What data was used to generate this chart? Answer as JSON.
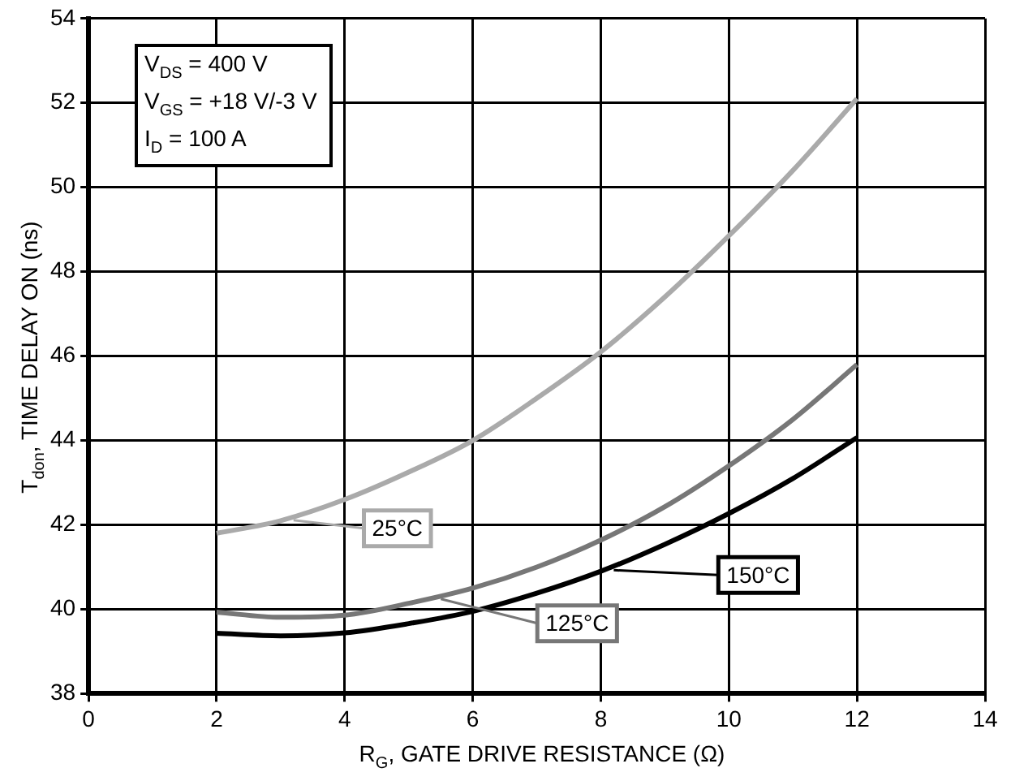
{
  "chart_data": {
    "type": "line",
    "xlabel": "R$_{G}$, GATE DRIVE RESISTANCE (Ω)",
    "ylabel": "T$_{don}$, TIME DELAY ON (ns)",
    "annotations": [
      "V$_{DS}$ = 400 V\nV$_{GS}$ = +18 V/-3 V\nI$_{D}$ = 100 A"
    ],
    "x": [
      2,
      3,
      4,
      5,
      6,
      7,
      8,
      9,
      10,
      11,
      12
    ],
    "series": [
      {
        "name": "25°C",
        "color": "#aaaaaa",
        "values": [
          41.8,
          42.1,
          42.6,
          43.25,
          44.0,
          45.0,
          46.1,
          47.4,
          48.85,
          50.4,
          52.1
        ]
      },
      {
        "name": "125°C",
        "color": "#777777",
        "values": [
          39.93,
          39.81,
          39.86,
          40.14,
          40.5,
          41.0,
          41.64,
          42.43,
          43.4,
          44.5,
          45.8
        ]
      },
      {
        "name": "150°C",
        "color": "#000000",
        "values": [
          39.43,
          39.37,
          39.44,
          39.66,
          39.95,
          40.38,
          40.9,
          41.54,
          42.27,
          43.1,
          44.07
        ]
      }
    ],
    "xlim": [
      0,
      14
    ],
    "xticks": [
      0,
      2,
      4,
      6,
      8,
      10,
      12,
      14
    ],
    "ylim": [
      38,
      54
    ],
    "yticks": [
      38,
      40,
      42,
      44,
      46,
      48,
      50,
      52,
      54
    ],
    "grid": true,
    "legend": "bottom",
    "marker": "none",
    "line_style": "solid"
  }
}
